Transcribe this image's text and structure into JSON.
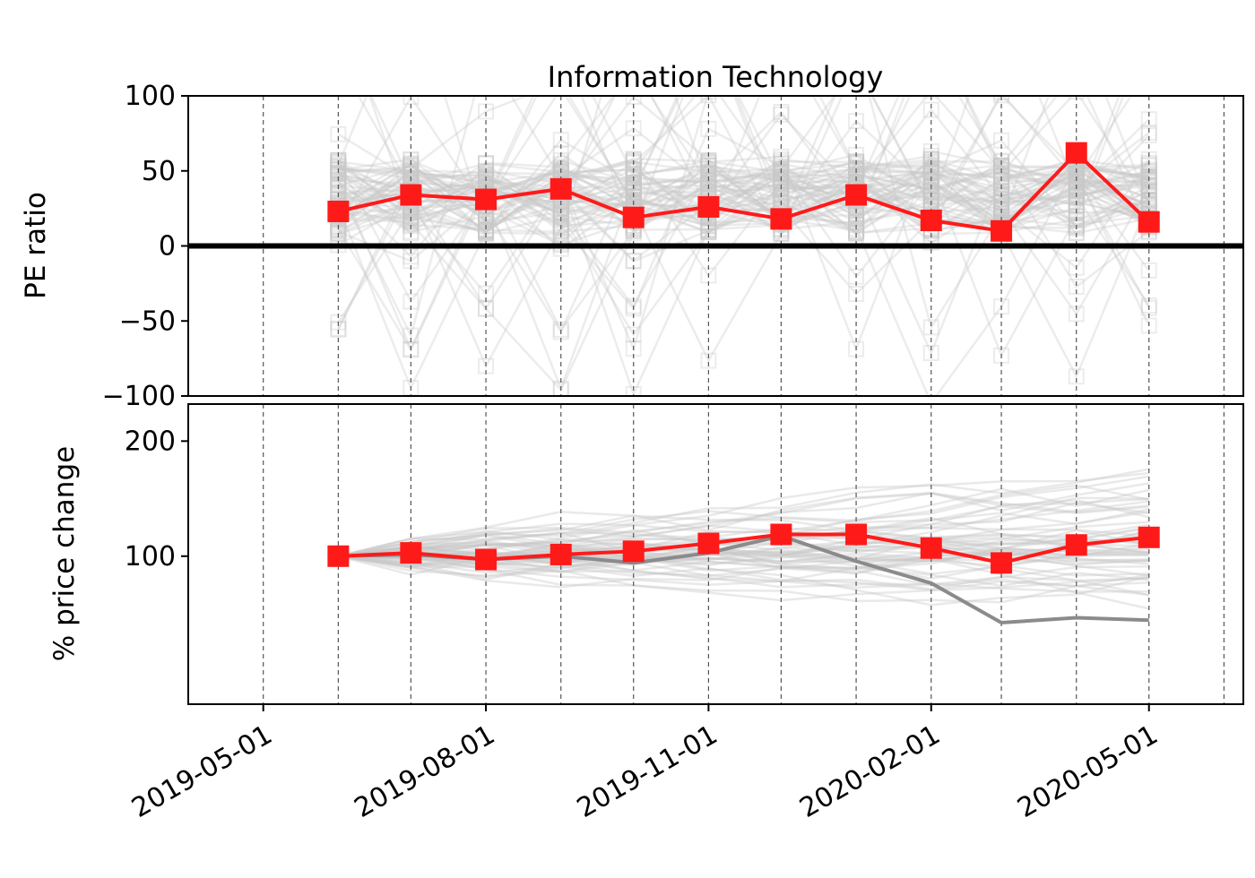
{
  "chart_data": [
    {
      "type": "line",
      "title": "Information Technology",
      "xlabel": "",
      "ylabel": "PE ratio",
      "ylim": [
        -100,
        100
      ],
      "yticks": [
        100,
        50,
        0,
        -50,
        -100
      ],
      "ytick_labels": [
        "100",
        "50",
        "0",
        "−50",
        "−100"
      ],
      "x_range": [
        "2019-03-31",
        "2020-06-09"
      ],
      "vertical_gridlines": [
        "2019-05-01",
        "2019-06-01",
        "2019-07-01",
        "2019-08-01",
        "2019-09-01",
        "2019-10-01",
        "2019-11-01",
        "2019-12-01",
        "2020-01-01",
        "2020-02-01",
        "2020-03-01",
        "2020-04-01",
        "2020-05-01",
        "2020-06-01"
      ],
      "grid": "vertical dashed",
      "reference_line": 0,
      "highlight_color": "#ff1a1a",
      "background_color": "#c8c8c8",
      "marker": "square",
      "series": [
        {
          "x": [
            "2019-06-01",
            "2019-07-01",
            "2019-08-01",
            "2019-09-01",
            "2019-10-01",
            "2019-11-01",
            "2019-12-01",
            "2020-01-01",
            "2020-02-01",
            "2020-03-01",
            "2020-04-01",
            "2020-05-01"
          ],
          "values": [
            23,
            34,
            31,
            38,
            19,
            26,
            18,
            34,
            17,
            10,
            62,
            16
          ]
        }
      ]
    },
    {
      "type": "line",
      "title": "",
      "xlabel": "",
      "ylabel": "% price change",
      "scale": "log",
      "ylim": [
        41,
        250
      ],
      "yticks": [
        200,
        100
      ],
      "ytick_labels": [
        "200",
        "100"
      ],
      "x_range": [
        "2019-03-31",
        "2020-06-09"
      ],
      "xticks": [
        "2019-05-01",
        "2019-08-01",
        "2019-11-01",
        "2020-02-01",
        "2020-05-01"
      ],
      "xtick_labels": [
        "2019-05-01",
        "2019-08-01",
        "2019-11-01",
        "2020-02-01",
        "2020-05-01"
      ],
      "vertical_gridlines": [
        "2019-05-01",
        "2019-06-01",
        "2019-07-01",
        "2019-08-01",
        "2019-09-01",
        "2019-10-01",
        "2019-11-01",
        "2019-12-01",
        "2020-01-01",
        "2020-02-01",
        "2020-03-01",
        "2020-04-01",
        "2020-05-01",
        "2020-06-01"
      ],
      "grid": "vertical dashed",
      "highlight_color": "#ff1a1a",
      "secondary_color": "#8c8a8c",
      "background_color": "#c8c8c8",
      "marker": "square",
      "series": [
        {
          "x": [
            "2019-06-01",
            "2019-07-01",
            "2019-08-01",
            "2019-09-01",
            "2019-10-01",
            "2019-11-01",
            "2019-12-01",
            "2020-01-01",
            "2020-02-01",
            "2020-03-01",
            "2020-04-01",
            "2020-05-01"
          ],
          "values": [
            100,
            102,
            98,
            101,
            103,
            108,
            114,
            114,
            105,
            96,
            107,
            112
          ]
        },
        {
          "x": [
            "2019-06-01",
            "2019-07-01",
            "2019-08-01",
            "2019-09-01",
            "2019-10-01",
            "2019-11-01",
            "2019-12-01",
            "2020-01-01",
            "2020-02-01",
            "2020-03-01",
            "2020-04-01",
            "2020-05-01"
          ],
          "values": [
            100,
            101,
            98,
            100,
            96,
            102,
            113,
            97,
            85,
            67,
            69,
            68
          ]
        }
      ]
    }
  ]
}
